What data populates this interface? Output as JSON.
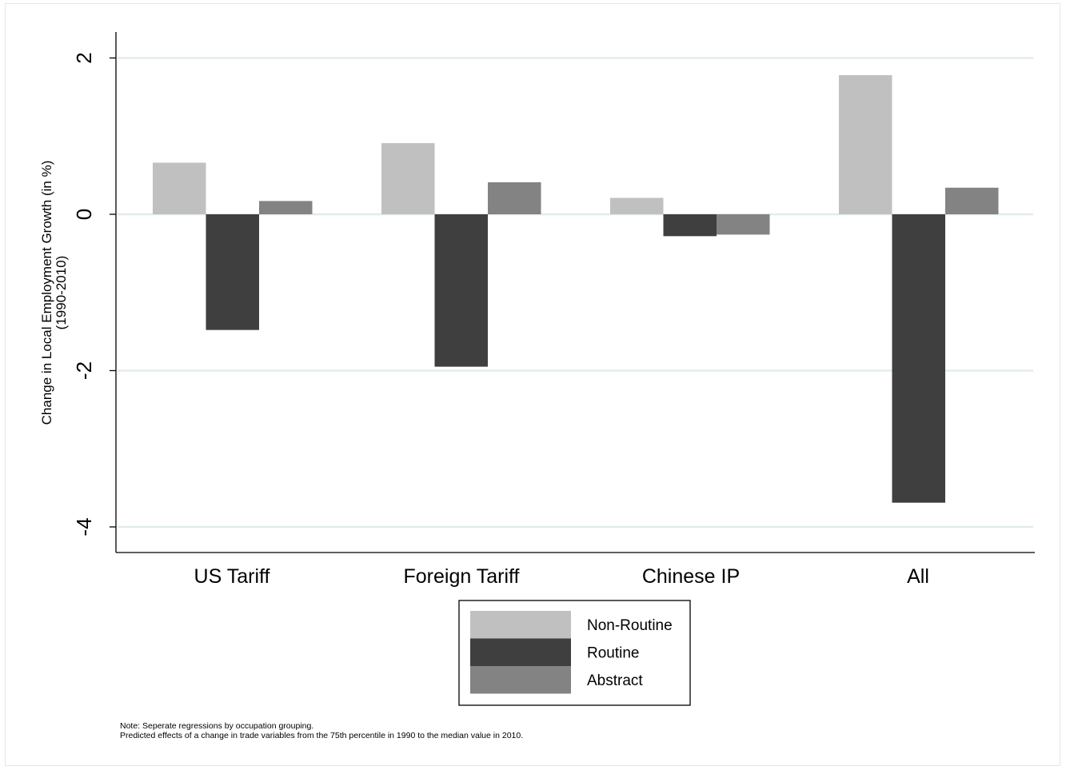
{
  "chart_data": {
    "type": "bar",
    "categories": [
      "US Tariff",
      "Foreign Tariff",
      "Chinese IP",
      "All"
    ],
    "series": [
      {
        "name": "Non-Routine",
        "color": "#c0c0c0",
        "values": [
          0.66,
          0.91,
          0.21,
          1.78
        ]
      },
      {
        "name": "Routine",
        "color": "#3f3f3f",
        "values": [
          -1.48,
          -1.95,
          -0.28,
          -3.69
        ]
      },
      {
        "name": "Abstract",
        "color": "#838383",
        "values": [
          0.17,
          0.41,
          -0.26,
          0.34
        ]
      }
    ],
    "ylabel_line1": "Change in Local Employment Growth (in %)",
    "ylabel_line2": "(1990-2010)",
    "yticks": [
      2,
      0,
      -2,
      -4
    ],
    "ylim": [
      -4.3,
      2.35
    ],
    "grid": true,
    "legend_position": "bottom-center",
    "note_line1": "Note: Seperate regressions by occupation grouping.",
    "note_line2": "Predicted effects of a change in trade variables from the 75th percentile in 1990 to the median value in 2010."
  }
}
